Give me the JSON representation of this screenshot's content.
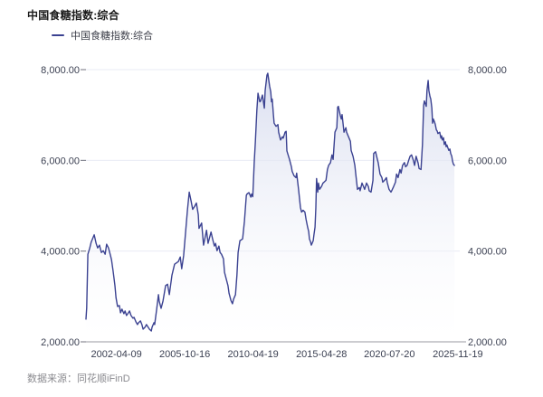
{
  "header": {
    "title": "中国食糖指数:综合"
  },
  "legend": {
    "label": "中国食糖指数:综合",
    "marker_color": "#3b4291"
  },
  "footer": {
    "source": "数据来源：同花顺iFinD"
  },
  "chart_data": {
    "type": "area",
    "title": "中国食糖指数:综合",
    "series_name": "中国食糖指数:综合",
    "x_axis_type": "time-normalized-0-1",
    "ylim": [
      2000,
      8000
    ],
    "grid": true,
    "legend_position": "top-left",
    "colors": {
      "line": "#3b4291",
      "fill_top": "#d5daee",
      "fill_bottom": "#ffffff",
      "grid_line": "#e9ebf4",
      "axis_line": "#9a9aa2",
      "tick_mark": "#70727e",
      "axis_label": "#3a3f51"
    },
    "y_ticks": [
      {
        "value": 2000,
        "label": "2,000.00"
      },
      {
        "value": 4000,
        "label": "4,000.00"
      },
      {
        "value": 6000,
        "label": "6,000.00"
      },
      {
        "value": 8000,
        "label": "8,000.00"
      }
    ],
    "x_ticks": [
      {
        "pos": 0.081,
        "label": "2002-04-09"
      },
      {
        "pos": 0.263,
        "label": "2005-10-16"
      },
      {
        "pos": 0.445,
        "label": "2010-04-19"
      },
      {
        "pos": 0.627,
        "label": "2015-04-28"
      },
      {
        "pos": 0.808,
        "label": "2020-07-20"
      },
      {
        "pos": 0.99,
        "label": "2025-11-19"
      }
    ],
    "points": [
      [
        0,
        2500
      ],
      [
        0.002,
        2750
      ],
      [
        0.005,
        3930
      ],
      [
        0.01,
        4070
      ],
      [
        0.014,
        4200
      ],
      [
        0.022,
        4360
      ],
      [
        0.027,
        4170
      ],
      [
        0.031,
        4070
      ],
      [
        0.036,
        4130
      ],
      [
        0.041,
        3970
      ],
      [
        0.046,
        4010
      ],
      [
        0.051,
        3930
      ],
      [
        0.055,
        4150
      ],
      [
        0.06,
        4070
      ],
      [
        0.065,
        3910
      ],
      [
        0.068,
        3810
      ],
      [
        0.072,
        3570
      ],
      [
        0.077,
        3240
      ],
      [
        0.08,
        2970
      ],
      [
        0.084,
        2780
      ],
      [
        0.089,
        2800
      ],
      [
        0.092,
        2640
      ],
      [
        0.096,
        2720
      ],
      [
        0.101,
        2620
      ],
      [
        0.104,
        2680
      ],
      [
        0.108,
        2580
      ],
      [
        0.113,
        2640
      ],
      [
        0.116,
        2680
      ],
      [
        0.12,
        2580
      ],
      [
        0.125,
        2520
      ],
      [
        0.128,
        2540
      ],
      [
        0.133,
        2440
      ],
      [
        0.137,
        2380
      ],
      [
        0.14,
        2420
      ],
      [
        0.145,
        2460
      ],
      [
        0.149,
        2380
      ],
      [
        0.152,
        2280
      ],
      [
        0.157,
        2320
      ],
      [
        0.161,
        2380
      ],
      [
        0.164,
        2340
      ],
      [
        0.169,
        2280
      ],
      [
        0.174,
        2240
      ],
      [
        0.176,
        2320
      ],
      [
        0.181,
        2420
      ],
      [
        0.183,
        2380
      ],
      [
        0.188,
        2700
      ],
      [
        0.193,
        3040
      ],
      [
        0.195,
        2900
      ],
      [
        0.2,
        2740
      ],
      [
        0.205,
        2900
      ],
      [
        0.212,
        3240
      ],
      [
        0.217,
        3270
      ],
      [
        0.222,
        3040
      ],
      [
        0.229,
        3470
      ],
      [
        0.236,
        3710
      ],
      [
        0.246,
        3770
      ],
      [
        0.251,
        3870
      ],
      [
        0.255,
        3610
      ],
      [
        0.26,
        3900
      ],
      [
        0.265,
        4400
      ],
      [
        0.27,
        4900
      ],
      [
        0.275,
        5300
      ],
      [
        0.28,
        5100
      ],
      [
        0.284,
        4920
      ],
      [
        0.289,
        4980
      ],
      [
        0.294,
        5060
      ],
      [
        0.299,
        4800
      ],
      [
        0.301,
        4500
      ],
      [
        0.308,
        4620
      ],
      [
        0.313,
        4130
      ],
      [
        0.321,
        4460
      ],
      [
        0.325,
        4170
      ],
      [
        0.333,
        4420
      ],
      [
        0.337,
        4270
      ],
      [
        0.342,
        4110
      ],
      [
        0.345,
        4170
      ],
      [
        0.349,
        4010
      ],
      [
        0.354,
        4110
      ],
      [
        0.357,
        3970
      ],
      [
        0.361,
        3930
      ],
      [
        0.366,
        3830
      ],
      [
        0.369,
        3530
      ],
      [
        0.374,
        3370
      ],
      [
        0.378,
        3240
      ],
      [
        0.381,
        3070
      ],
      [
        0.386,
        2910
      ],
      [
        0.39,
        2840
      ],
      [
        0.393,
        2940
      ],
      [
        0.398,
        3040
      ],
      [
        0.402,
        3470
      ],
      [
        0.405,
        3970
      ],
      [
        0.41,
        4230
      ],
      [
        0.414,
        4250
      ],
      [
        0.417,
        4270
      ],
      [
        0.422,
        4660
      ],
      [
        0.427,
        5230
      ],
      [
        0.429,
        5260
      ],
      [
        0.434,
        5290
      ],
      [
        0.439,
        5190
      ],
      [
        0.441,
        5260
      ],
      [
        0.444,
        5200
      ],
      [
        0.446,
        5560
      ],
      [
        0.448,
        5950
      ],
      [
        0.451,
        6420
      ],
      [
        0.455,
        7100
      ],
      [
        0.458,
        7480
      ],
      [
        0.463,
        7290
      ],
      [
        0.465,
        7310
      ],
      [
        0.47,
        7440
      ],
      [
        0.475,
        7150
      ],
      [
        0.477,
        7540
      ],
      [
        0.482,
        7880
      ],
      [
        0.484,
        7920
      ],
      [
        0.489,
        7640
      ],
      [
        0.492,
        7510
      ],
      [
        0.494,
        7290
      ],
      [
        0.496,
        7350
      ],
      [
        0.499,
        7010
      ],
      [
        0.501,
        6820
      ],
      [
        0.506,
        6750
      ],
      [
        0.511,
        6790
      ],
      [
        0.513,
        6620
      ],
      [
        0.518,
        6450
      ],
      [
        0.523,
        6520
      ],
      [
        0.525,
        6490
      ],
      [
        0.53,
        6620
      ],
      [
        0.533,
        6640
      ],
      [
        0.535,
        6210
      ],
      [
        0.537,
        6150
      ],
      [
        0.542,
        6020
      ],
      [
        0.547,
        5860
      ],
      [
        0.549,
        5760
      ],
      [
        0.554,
        5660
      ],
      [
        0.559,
        5620
      ],
      [
        0.561,
        5720
      ],
      [
        0.566,
        5360
      ],
      [
        0.571,
        4960
      ],
      [
        0.574,
        4860
      ],
      [
        0.578,
        4900
      ],
      [
        0.583,
        4860
      ],
      [
        0.586,
        4700
      ],
      [
        0.59,
        4530
      ],
      [
        0.593,
        4430
      ],
      [
        0.595,
        4270
      ],
      [
        0.598,
        4200
      ],
      [
        0.6,
        4130
      ],
      [
        0.605,
        4230
      ],
      [
        0.607,
        4360
      ],
      [
        0.61,
        4530
      ],
      [
        0.612,
        4960
      ],
      [
        0.614,
        5600
      ],
      [
        0.617,
        5300
      ],
      [
        0.619,
        5500
      ],
      [
        0.622,
        5360
      ],
      [
        0.627,
        5420
      ],
      [
        0.631,
        5500
      ],
      [
        0.634,
        5520
      ],
      [
        0.639,
        5560
      ],
      [
        0.643,
        5800
      ],
      [
        0.646,
        5890
      ],
      [
        0.651,
        5950
      ],
      [
        0.655,
        6120
      ],
      [
        0.658,
        6020
      ],
      [
        0.663,
        6620
      ],
      [
        0.668,
        6720
      ],
      [
        0.67,
        7170
      ],
      [
        0.672,
        7190
      ],
      [
        0.677,
        6990
      ],
      [
        0.68,
        6910
      ],
      [
        0.682,
        7010
      ],
      [
        0.687,
        6620
      ],
      [
        0.692,
        6720
      ],
      [
        0.694,
        6620
      ],
      [
        0.699,
        6520
      ],
      [
        0.704,
        6420
      ],
      [
        0.706,
        6220
      ],
      [
        0.711,
        6090
      ],
      [
        0.716,
        5890
      ],
      [
        0.718,
        5720
      ],
      [
        0.723,
        5360
      ],
      [
        0.728,
        5400
      ],
      [
        0.73,
        5330
      ],
      [
        0.735,
        5500
      ],
      [
        0.74,
        5400
      ],
      [
        0.742,
        5360
      ],
      [
        0.747,
        5500
      ],
      [
        0.752,
        5420
      ],
      [
        0.754,
        5330
      ],
      [
        0.759,
        5300
      ],
      [
        0.764,
        5560
      ],
      [
        0.766,
        6150
      ],
      [
        0.771,
        6190
      ],
      [
        0.776,
        6020
      ],
      [
        0.778,
        5950
      ],
      [
        0.783,
        5700
      ],
      [
        0.788,
        5620
      ],
      [
        0.79,
        5520
      ],
      [
        0.795,
        5560
      ],
      [
        0.8,
        5620
      ],
      [
        0.802,
        5520
      ],
      [
        0.807,
        5360
      ],
      [
        0.812,
        5300
      ],
      [
        0.814,
        5330
      ],
      [
        0.819,
        5420
      ],
      [
        0.824,
        5520
      ],
      [
        0.827,
        5700
      ],
      [
        0.831,
        5620
      ],
      [
        0.836,
        5800
      ],
      [
        0.839,
        5720
      ],
      [
        0.843,
        5890
      ],
      [
        0.848,
        5950
      ],
      [
        0.851,
        5860
      ],
      [
        0.855,
        5890
      ],
      [
        0.86,
        6020
      ],
      [
        0.863,
        6090
      ],
      [
        0.867,
        6120
      ],
      [
        0.872,
        5990
      ],
      [
        0.875,
        5890
      ],
      [
        0.879,
        6090
      ],
      [
        0.884,
        5950
      ],
      [
        0.887,
        5820
      ],
      [
        0.892,
        5800
      ],
      [
        0.896,
        6350
      ],
      [
        0.899,
        7210
      ],
      [
        0.901,
        7310
      ],
      [
        0.906,
        7190
      ],
      [
        0.908,
        7540
      ],
      [
        0.911,
        7760
      ],
      [
        0.913,
        7540
      ],
      [
        0.916,
        7410
      ],
      [
        0.918,
        7350
      ],
      [
        0.921,
        7150
      ],
      [
        0.923,
        6820
      ],
      [
        0.925,
        6910
      ],
      [
        0.928,
        6850
      ],
      [
        0.93,
        6790
      ],
      [
        0.933,
        6670
      ],
      [
        0.935,
        6650
      ],
      [
        0.937,
        6590
      ],
      [
        0.942,
        6620
      ],
      [
        0.945,
        6490
      ],
      [
        0.947,
        6540
      ],
      [
        0.949,
        6450
      ],
      [
        0.952,
        6500
      ],
      [
        0.954,
        6350
      ],
      [
        0.957,
        6410
      ],
      [
        0.959,
        6300
      ],
      [
        0.961,
        6340
      ],
      [
        0.966,
        6220
      ],
      [
        0.969,
        6250
      ],
      [
        0.971,
        6150
      ],
      [
        0.974,
        6090
      ],
      [
        0.976,
        5990
      ],
      [
        0.978,
        5920
      ],
      [
        0.981,
        5890
      ]
    ]
  }
}
